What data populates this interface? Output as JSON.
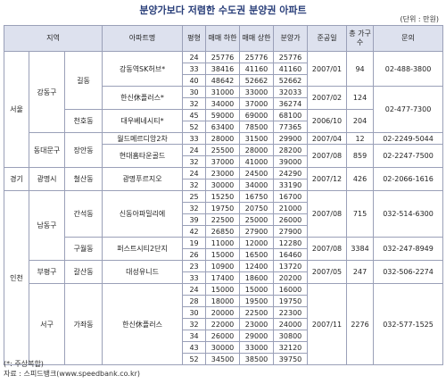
{
  "title": "분양가보다 저렴한 수도권 분양권 아파트",
  "unit": "(단위 : 만원)",
  "header": {
    "region": "지역",
    "apt": "아파트명",
    "size": "평형",
    "low": "매매 하한",
    "high": "매매 상한",
    "price": "분양가",
    "date": "준공일",
    "households": "총 가구수",
    "contact": "문의"
  },
  "regions": [
    {
      "name": "서울",
      "districts": [
        {
          "name": "강동구",
          "dongs": [
            {
              "name": "길동",
              "apts": [
                {
                  "name": "강동역SK허브*",
                  "units": [
                    [
                      24,
                      25776,
                      25776,
                      25776
                    ],
                    [
                      33,
                      38416,
                      41160,
                      41160
                    ],
                    [
                      40,
                      48642,
                      52662,
                      52662
                    ]
                  ],
                  "date": "2007/01",
                  "households": 94,
                  "contact": "02-488-3800"
                },
                {
                  "name": "한신休플러스*",
                  "units": [
                    [
                      30,
                      31000,
                      33000,
                      32033
                    ],
                    [
                      32,
                      34000,
                      37000,
                      36274
                    ]
                  ],
                  "date": "2007/02",
                  "households": 124,
                  "contact": "02-477-7300"
                }
              ]
            },
            {
              "name": "천호동",
              "apts": [
                {
                  "name": "대우베네시티*",
                  "units": [
                    [
                      45,
                      59000,
                      69000,
                      68100
                    ],
                    [
                      52,
                      63400,
                      78500,
                      77365
                    ]
                  ],
                  "date": "2006/10",
                  "households": 204
                }
              ]
            }
          ]
        },
        {
          "name": "동대문구",
          "dongs": [
            {
              "name": "장안동",
              "apts": [
                {
                  "name": "월드메르디앙2차",
                  "units": [
                    [
                      33,
                      28000,
                      31500,
                      29900
                    ]
                  ],
                  "date": "2007/04",
                  "households": 12,
                  "contact": "02-2249-5044"
                },
                {
                  "name": "현대홈타운골드",
                  "units": [
                    [
                      24,
                      25500,
                      28000,
                      28200
                    ],
                    [
                      32,
                      37000,
                      41000,
                      39000
                    ]
                  ],
                  "date": "2007/08",
                  "households": 859,
                  "contact": "02-2247-7500"
                }
              ]
            }
          ]
        }
      ]
    },
    {
      "name": "경기",
      "districts": [
        {
          "name": "광명시",
          "dongs": [
            {
              "name": "철산동",
              "apts": [
                {
                  "name": "광명푸르지오",
                  "units": [
                    [
                      24,
                      23000,
                      24500,
                      24290
                    ],
                    [
                      32,
                      30000,
                      34000,
                      33190
                    ]
                  ],
                  "date": "2007/12",
                  "households": 426,
                  "contact": "02-2066-1616"
                }
              ]
            }
          ]
        }
      ]
    },
    {
      "name": "인천",
      "districts": [
        {
          "name": "남동구",
          "dongs": [
            {
              "name": "간석동",
              "apts": [
                {
                  "name": "신동아파밀리에",
                  "units": [
                    [
                      25,
                      15250,
                      16750,
                      16700
                    ],
                    [
                      32,
                      19750,
                      20750,
                      21000
                    ],
                    [
                      39,
                      22500,
                      25000,
                      26000
                    ],
                    [
                      42,
                      26850,
                      27900,
                      27900
                    ]
                  ],
                  "date": "2007/08",
                  "households": 715,
                  "contact": "032-514-6300"
                }
              ]
            },
            {
              "name": "구월동",
              "apts": [
                {
                  "name": "퍼스트시티2단지",
                  "units": [
                    [
                      19,
                      11000,
                      12000,
                      12280
                    ],
                    [
                      26,
                      15000,
                      16500,
                      16460
                    ]
                  ],
                  "date": "2007/08",
                  "households": 3384,
                  "contact": "032-247-8949"
                }
              ]
            }
          ]
        },
        {
          "name": "부평구",
          "dongs": [
            {
              "name": "갈산동",
              "apts": [
                {
                  "name": "대성유니드",
                  "units": [
                    [
                      23,
                      10900,
                      12400,
                      13720
                    ],
                    [
                      33,
                      17400,
                      18600,
                      20200
                    ]
                  ],
                  "date": "2007/05",
                  "households": 247,
                  "contact": "032-506-2274"
                }
              ]
            }
          ]
        },
        {
          "name": "서구",
          "dongs": [
            {
              "name": "가좌동",
              "apts": [
                {
                  "name": "한신休플러스",
                  "units": [
                    [
                      24,
                      15000,
                      15000,
                      16000
                    ],
                    [
                      28,
                      18000,
                      19500,
                      19750
                    ],
                    [
                      30,
                      20000,
                      22500,
                      22300
                    ],
                    [
                      32,
                      22000,
                      23000,
                      24000
                    ],
                    [
                      34,
                      26000,
                      29000,
                      30800
                    ],
                    [
                      43,
                      30000,
                      33000,
                      32120
                    ],
                    [
                      52,
                      34500,
                      38500,
                      39750
                    ]
                  ],
                  "date": "2007/11",
                  "households": 2276,
                  "contact": "032-577-1525"
                }
              ]
            }
          ]
        }
      ]
    }
  ],
  "notes": [
    "(*: 주상복합)",
    "자료 : 스피드뱅크(www.speedbank.co.kr)"
  ]
}
